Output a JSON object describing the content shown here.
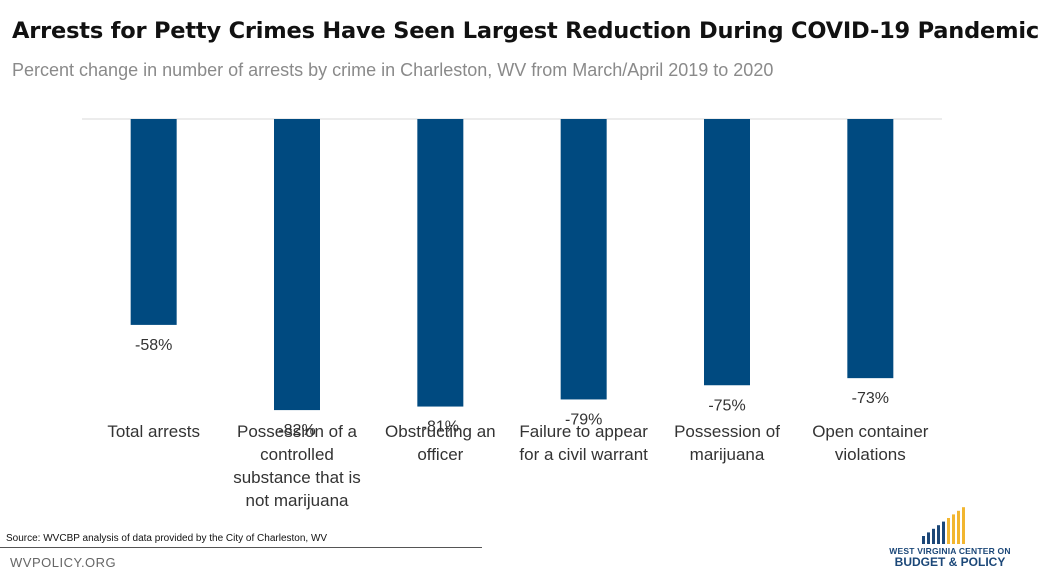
{
  "header": {
    "title": "Arrests for Petty Crimes Have Seen Largest Reduction During COVID-19 Pandemic",
    "subtitle": "Percent change in number of arrests by crime in Charleston, WV from March/April 2019 to 2020"
  },
  "chart_data": {
    "type": "bar",
    "categories": [
      [
        "Total arrests"
      ],
      [
        "Possession of a",
        "controlled",
        "substance that is",
        "not marijuana"
      ],
      [
        "Obstructing an",
        "officer"
      ],
      [
        "Failure to appear",
        "for a civil warrant"
      ],
      [
        "Possession of",
        "marijuana"
      ],
      [
        "Open container",
        "violations"
      ]
    ],
    "values": [
      -58,
      -82,
      -81,
      -79,
      -75,
      -73
    ],
    "data_labels": [
      "-58%",
      "-82%",
      "-81%",
      "-79%",
      "-75%",
      "-73%"
    ],
    "ylim": [
      -100,
      0
    ],
    "bar_color": "#004a80",
    "grid": false,
    "legend": "none"
  },
  "footer": {
    "source": "Source: WVCBP analysis of data provided by the City of Charleston, WV",
    "site": "WVPOLICY.ORG",
    "logo_line1": "WEST VIRGINIA CENTER ON",
    "logo_line2": "BUDGET & POLICY",
    "logo_colors": [
      "#1b4778",
      "#f2b630"
    ]
  }
}
